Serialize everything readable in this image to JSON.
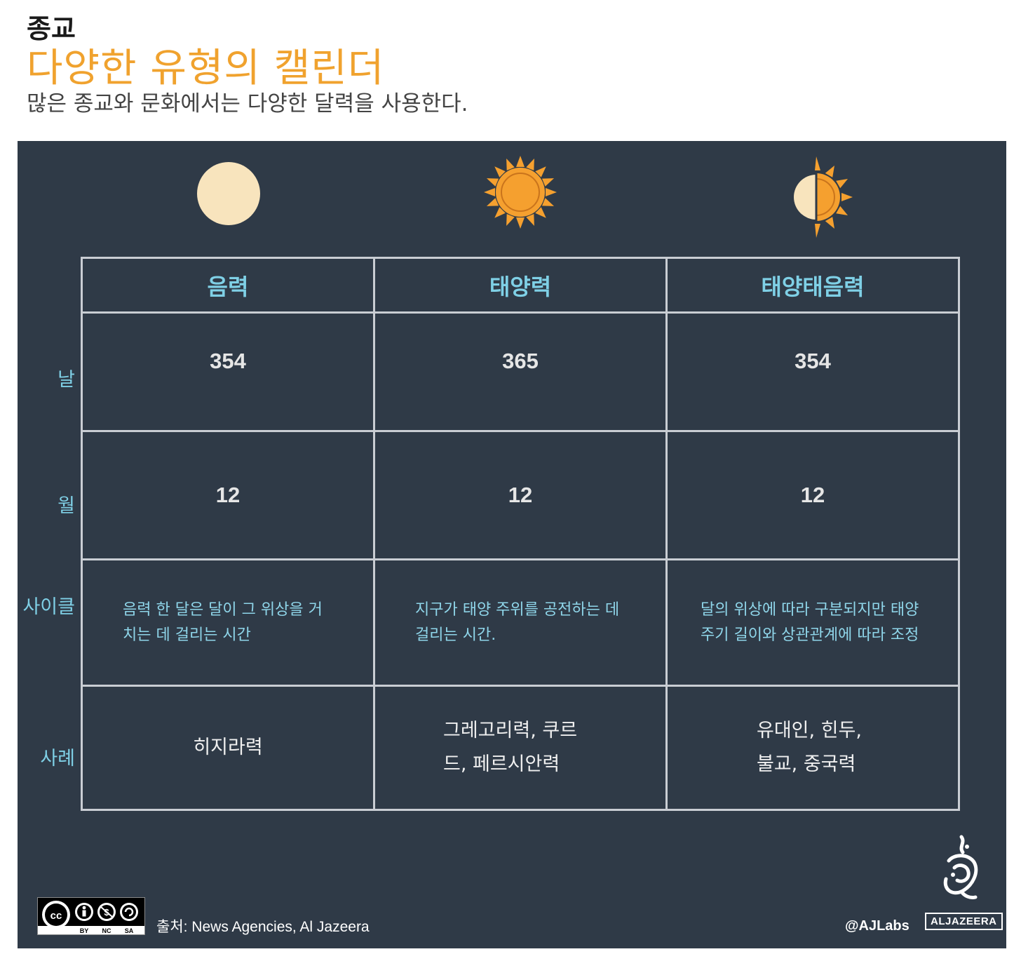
{
  "header": {
    "kicker": "종교",
    "title": "다양한 유형의 캘린더",
    "subtitle": "많은 종교와 문화에서는 다양한 달력을 사용한다."
  },
  "table": {
    "columns": [
      "음력",
      "태양력",
      "태양태음력"
    ],
    "row_labels": {
      "days": "날",
      "months": "월",
      "cycle": "사이클",
      "examples": "사례"
    },
    "days": [
      "354",
      "365",
      "354"
    ],
    "months": [
      "12",
      "12",
      "12"
    ],
    "cycle": [
      "음력 한 달은 달이 그 위상을 거치는 데 걸리는 시간",
      "지구가 태양 주위를 공전하는 데 걸리는 시간.",
      "달의 위상에 따라 구분되지만 태양 주기 길이와 상관관계에 따라 조정"
    ],
    "examples": [
      "히지라력",
      "그레고리력, 쿠르드, 페르시안력",
      "유대인, 힌두, 불교, 중국력"
    ]
  },
  "icons": [
    "moon-icon",
    "sun-icon",
    "half-moon-half-sun-icon"
  ],
  "colors": {
    "accent": "#f0a22e",
    "panel_bg": "#2f3a47",
    "header_text": "#7fd0e6",
    "moon": "#f8e4bd",
    "sun": "#f5a02f"
  },
  "footer": {
    "license": "cc",
    "license_parts": [
      "BY",
      "NC",
      "SA"
    ],
    "source": "출처: News Agencies, Al Jazeera",
    "handle": "@AJLabs",
    "brand": "ALJAZEERA"
  }
}
